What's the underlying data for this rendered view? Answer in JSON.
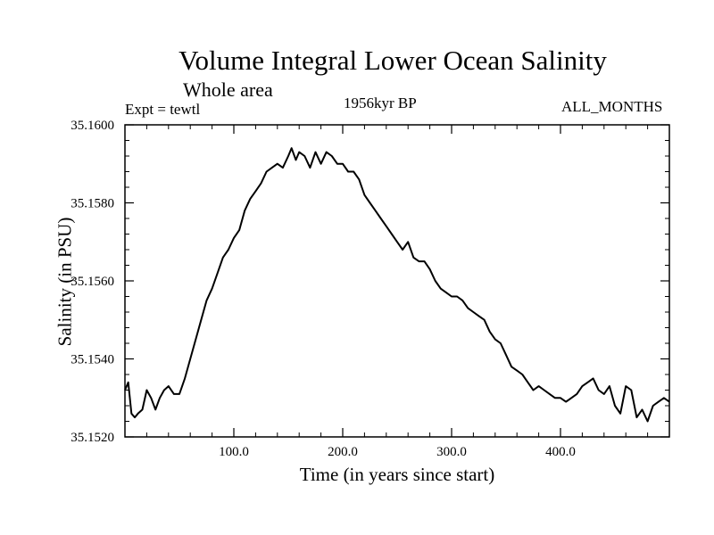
{
  "chart_data": {
    "type": "line",
    "title": "Volume Integral Lower Ocean Salinity",
    "subtitle": "Whole area",
    "experiment_label": "Expt = tewtl",
    "period_label": "1956kyr BP",
    "months_label": "ALL_MONTHS",
    "xlabel": "Time (in years since start)",
    "ylabel": "Salinity (in PSU)",
    "xlim": [
      0,
      500
    ],
    "ylim": [
      35.152,
      35.16
    ],
    "xticks": [
      100,
      200,
      300,
      400
    ],
    "xtick_labels": [
      "100.0",
      "200.0",
      "300.0",
      "400.0"
    ],
    "yticks": [
      35.152,
      35.154,
      35.156,
      35.158,
      35.16
    ],
    "ytick_labels": [
      "35.1520",
      "35.1540",
      "35.1560",
      "35.1580",
      "35.1600"
    ],
    "series": [
      {
        "name": "salinity",
        "x": [
          0,
          3,
          6,
          9,
          12,
          16,
          20,
          24,
          28,
          32,
          36,
          40,
          45,
          50,
          55,
          60,
          65,
          70,
          75,
          80,
          85,
          90,
          95,
          100,
          105,
          110,
          115,
          120,
          125,
          130,
          135,
          140,
          145,
          150,
          153,
          157,
          160,
          165,
          170,
          175,
          180,
          185,
          190,
          195,
          200,
          205,
          210,
          215,
          220,
          225,
          230,
          235,
          240,
          245,
          250,
          255,
          260,
          265,
          270,
          275,
          280,
          285,
          290,
          295,
          300,
          305,
          310,
          315,
          320,
          325,
          330,
          335,
          340,
          345,
          350,
          355,
          360,
          365,
          370,
          375,
          380,
          385,
          390,
          395,
          400,
          405,
          410,
          415,
          420,
          425,
          430,
          435,
          440,
          445,
          450,
          455,
          460,
          465,
          470,
          475,
          480,
          485,
          490,
          495,
          500
        ],
        "y": [
          35.1532,
          35.1534,
          35.1526,
          35.1525,
          35.1526,
          35.1527,
          35.1532,
          35.153,
          35.1527,
          35.153,
          35.1532,
          35.1533,
          35.1531,
          35.1531,
          35.1535,
          35.154,
          35.1545,
          35.155,
          35.1555,
          35.1558,
          35.1562,
          35.1566,
          35.1568,
          35.1571,
          35.1573,
          35.1578,
          35.1581,
          35.1583,
          35.1585,
          35.1588,
          35.1589,
          35.159,
          35.1589,
          35.1592,
          35.1594,
          35.1591,
          35.1593,
          35.1592,
          35.1589,
          35.1593,
          35.159,
          35.1593,
          35.1592,
          35.159,
          35.159,
          35.1588,
          35.1588,
          35.1586,
          35.1582,
          35.158,
          35.1578,
          35.1576,
          35.1574,
          35.1572,
          35.157,
          35.1568,
          35.157,
          35.1566,
          35.1565,
          35.1565,
          35.1563,
          35.156,
          35.1558,
          35.1557,
          35.1556,
          35.1556,
          35.1555,
          35.1553,
          35.1552,
          35.1551,
          35.155,
          35.1547,
          35.1545,
          35.1544,
          35.1541,
          35.1538,
          35.1537,
          35.1536,
          35.1534,
          35.1532,
          35.1533,
          35.1532,
          35.1531,
          35.153,
          35.153,
          35.1529,
          35.153,
          35.1531,
          35.1533,
          35.1534,
          35.1535,
          35.1532,
          35.1531,
          35.1533,
          35.1528,
          35.1526,
          35.1533,
          35.1532,
          35.1525,
          35.1527,
          35.1524,
          35.1528,
          35.1529,
          35.153,
          35.1529
        ]
      }
    ]
  }
}
